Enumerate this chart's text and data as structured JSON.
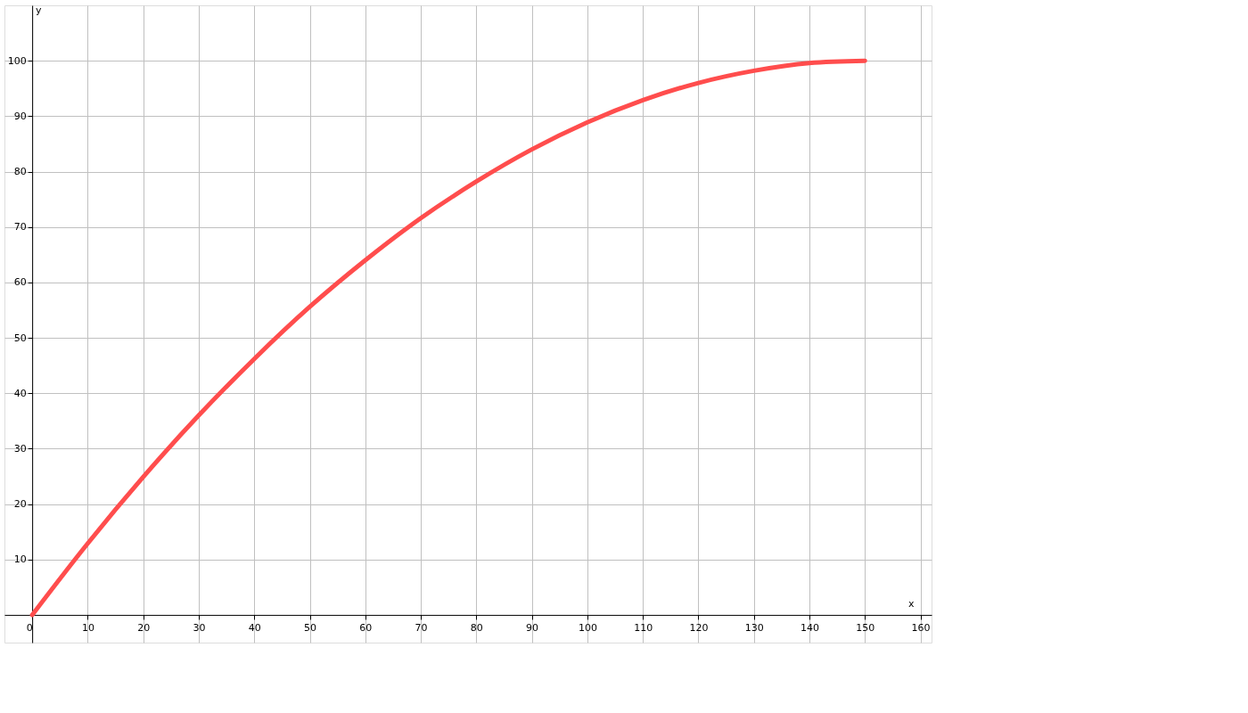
{
  "chart_data": {
    "type": "line",
    "xlabel": "x",
    "ylabel": "y",
    "x": [
      0,
      10,
      20,
      30,
      40,
      50,
      60,
      70,
      80,
      90,
      100,
      110,
      120,
      130,
      140,
      150
    ],
    "series": [
      {
        "color": "#ff4d4d",
        "values": [
          0,
          12.9,
          24.9,
          36,
          46.2,
          55.6,
          64,
          71.6,
          78.2,
          84,
          88.9,
          92.9,
          96,
          98.2,
          99.6,
          100
        ]
      }
    ],
    "xlim": [
      -5,
      162
    ],
    "ylim": [
      -5,
      110
    ],
    "xticks": [
      0,
      10,
      20,
      30,
      40,
      50,
      60,
      70,
      80,
      90,
      100,
      110,
      120,
      130,
      140,
      150,
      160
    ],
    "yticks": [
      10,
      20,
      30,
      40,
      50,
      60,
      70,
      80,
      90,
      100
    ],
    "grid": true,
    "marker": "none",
    "line_style": "solid"
  }
}
